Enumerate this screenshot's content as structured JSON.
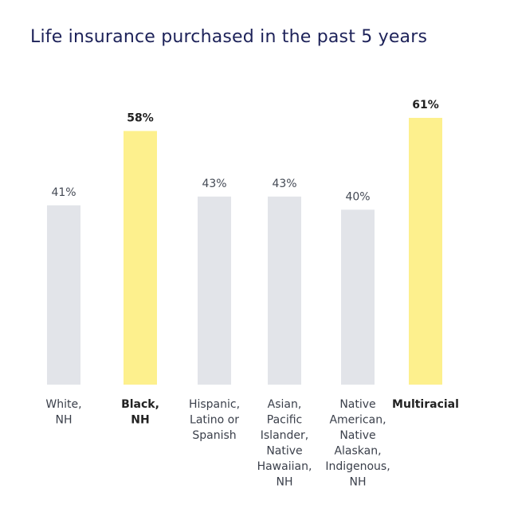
{
  "chart_data": {
    "type": "bar",
    "title": "Life insurance purchased in the past 5 years",
    "categories": [
      [
        "White,",
        "NH"
      ],
      [
        "Black,",
        "NH"
      ],
      [
        "Hispanic,",
        "Latino or",
        "Spanish"
      ],
      [
        "Asian,",
        "Pacific",
        "Islander,",
        "Native",
        "Hawaiian,",
        "NH"
      ],
      [
        "Native",
        "American,",
        "Native",
        "Alaskan,",
        "Indigenous,",
        "NH"
      ],
      [
        "Multiracial"
      ]
    ],
    "values": [
      41,
      58,
      43,
      43,
      40,
      61
    ],
    "value_labels": [
      "41%",
      "58%",
      "43%",
      "43%",
      "40%",
      "61%"
    ],
    "highlighted": [
      false,
      true,
      false,
      false,
      false,
      true
    ],
    "colors": {
      "default": "#e2e4e9",
      "highlight": "#fdf08d"
    },
    "ylim": [
      0,
      61
    ]
  }
}
